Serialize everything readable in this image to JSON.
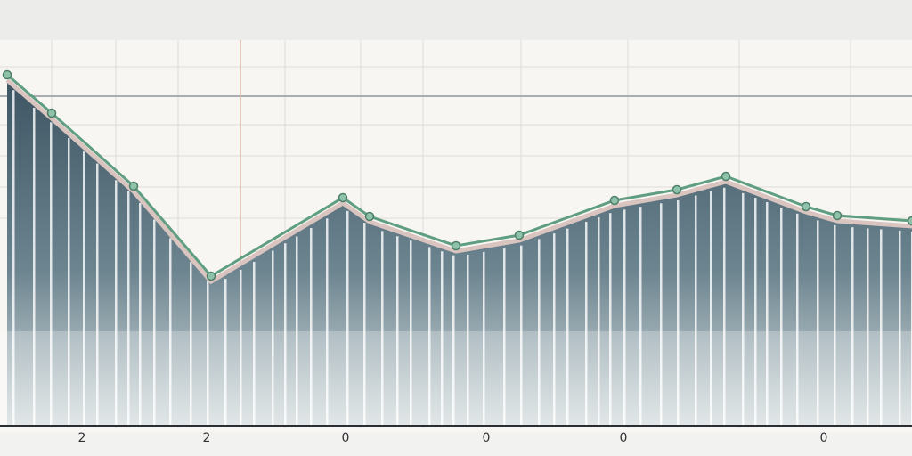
{
  "axis_labels": [
    "2",
    "2",
    "0",
    "0",
    "0",
    "0"
  ]
}
